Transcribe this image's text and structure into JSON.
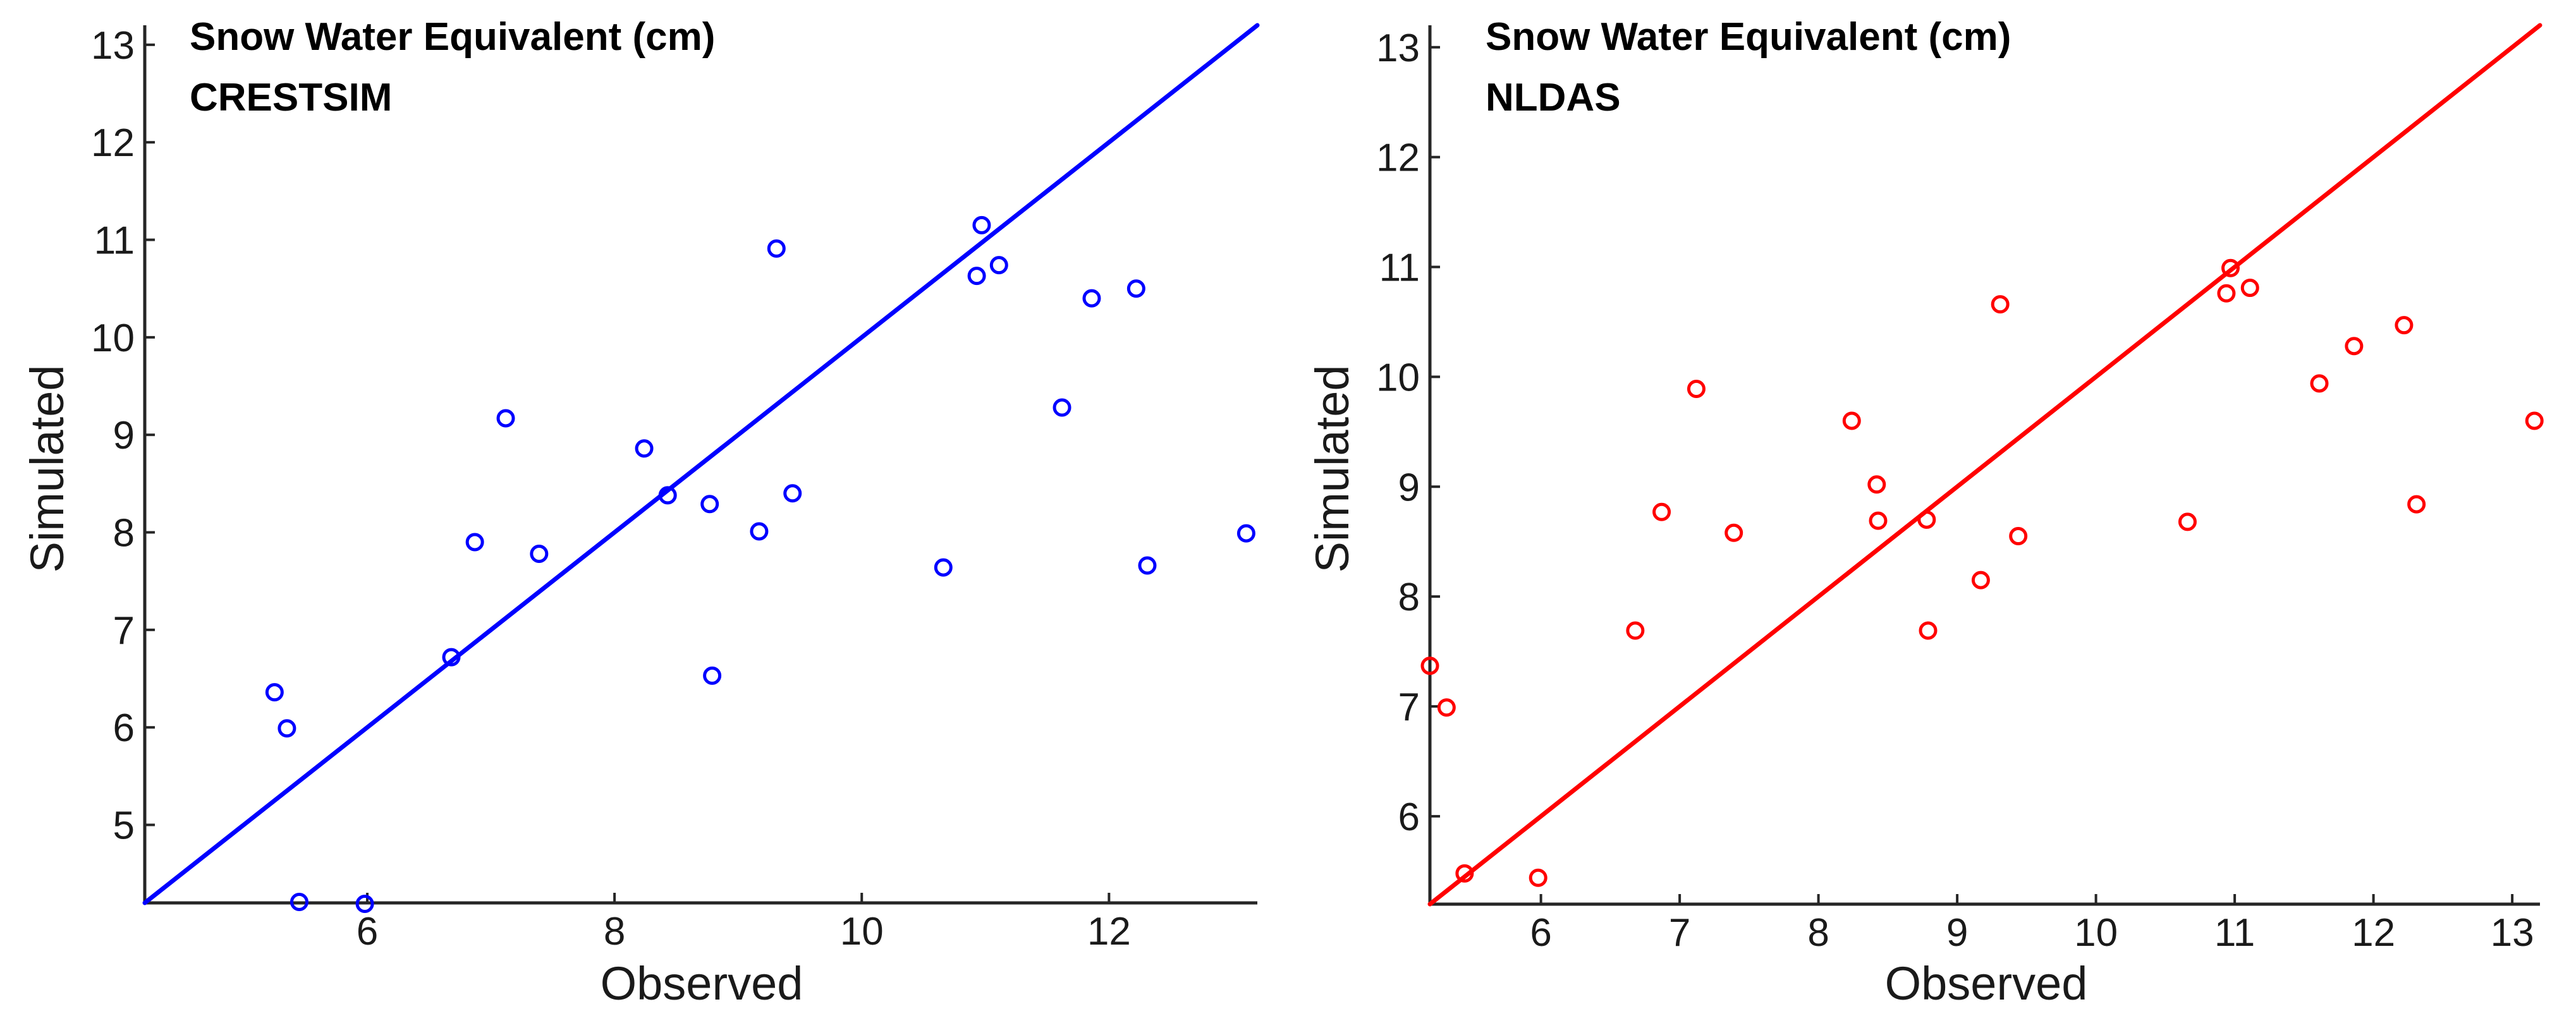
{
  "chart_data": [
    {
      "type": "scatter",
      "title": "Snow Water Equivalent (cm)",
      "subtitle": "CRESTSIM",
      "xlabel": "Observed",
      "ylabel": "Simulated",
      "xlim": [
        4.2,
        13.2
      ],
      "ylim": [
        4.2,
        13.2
      ],
      "xticks": [
        "6",
        "8",
        "10",
        "12"
      ],
      "yticks": [
        "5",
        "6",
        "7",
        "8",
        "9",
        "10",
        "11",
        "12",
        "13"
      ],
      "color": "#0000ff",
      "fit_line": {
        "x": [
          4.2,
          13.2
        ],
        "y": [
          4.2,
          13.2
        ]
      },
      "points": {
        "x": [
          5.25,
          5.35,
          5.45,
          5.98,
          6.68,
          6.87,
          7.12,
          7.39,
          8.24,
          8.43,
          8.77,
          8.79,
          9.17,
          9.31,
          9.44,
          10.66,
          10.93,
          10.97,
          11.11,
          11.62,
          11.86,
          12.22,
          12.31,
          13.11
        ],
        "y": [
          6.36,
          5.99,
          4.21,
          4.19,
          6.72,
          7.9,
          9.17,
          7.78,
          8.86,
          8.38,
          8.29,
          6.53,
          8.01,
          10.91,
          8.4,
          7.64,
          10.63,
          11.15,
          10.74,
          9.28,
          10.4,
          10.5,
          7.66,
          7.99
        ]
      }
    },
    {
      "type": "scatter",
      "title": "Snow Water Equivalent (cm)",
      "subtitle": "NLDAS",
      "xlabel": "Observed",
      "ylabel": "Simulated",
      "xlim": [
        5.2,
        13.2
      ],
      "ylim": [
        5.2,
        13.2
      ],
      "xticks": [
        "6",
        "7",
        "8",
        "9",
        "10",
        "11",
        "12",
        "13"
      ],
      "yticks": [
        "6",
        "7",
        "8",
        "9",
        "10",
        "11",
        "12",
        "13"
      ],
      "color": "#ff0000",
      "fit_line": {
        "x": [
          5.2,
          13.2
        ],
        "y": [
          5.2,
          13.2
        ]
      },
      "points": {
        "x": [
          5.2,
          5.32,
          5.45,
          5.98,
          6.68,
          6.87,
          7.12,
          7.39,
          8.24,
          8.42,
          8.43,
          8.78,
          8.79,
          9.17,
          9.31,
          9.44,
          10.66,
          10.94,
          10.97,
          11.11,
          11.61,
          11.86,
          12.22,
          12.31,
          13.16
        ],
        "y": [
          7.37,
          6.99,
          5.48,
          5.44,
          7.69,
          8.77,
          9.89,
          8.58,
          9.6,
          9.02,
          8.69,
          8.7,
          7.69,
          8.15,
          10.66,
          8.55,
          8.68,
          10.76,
          10.99,
          10.81,
          9.94,
          10.28,
          10.47,
          8.84,
          9.6
        ]
      }
    }
  ]
}
